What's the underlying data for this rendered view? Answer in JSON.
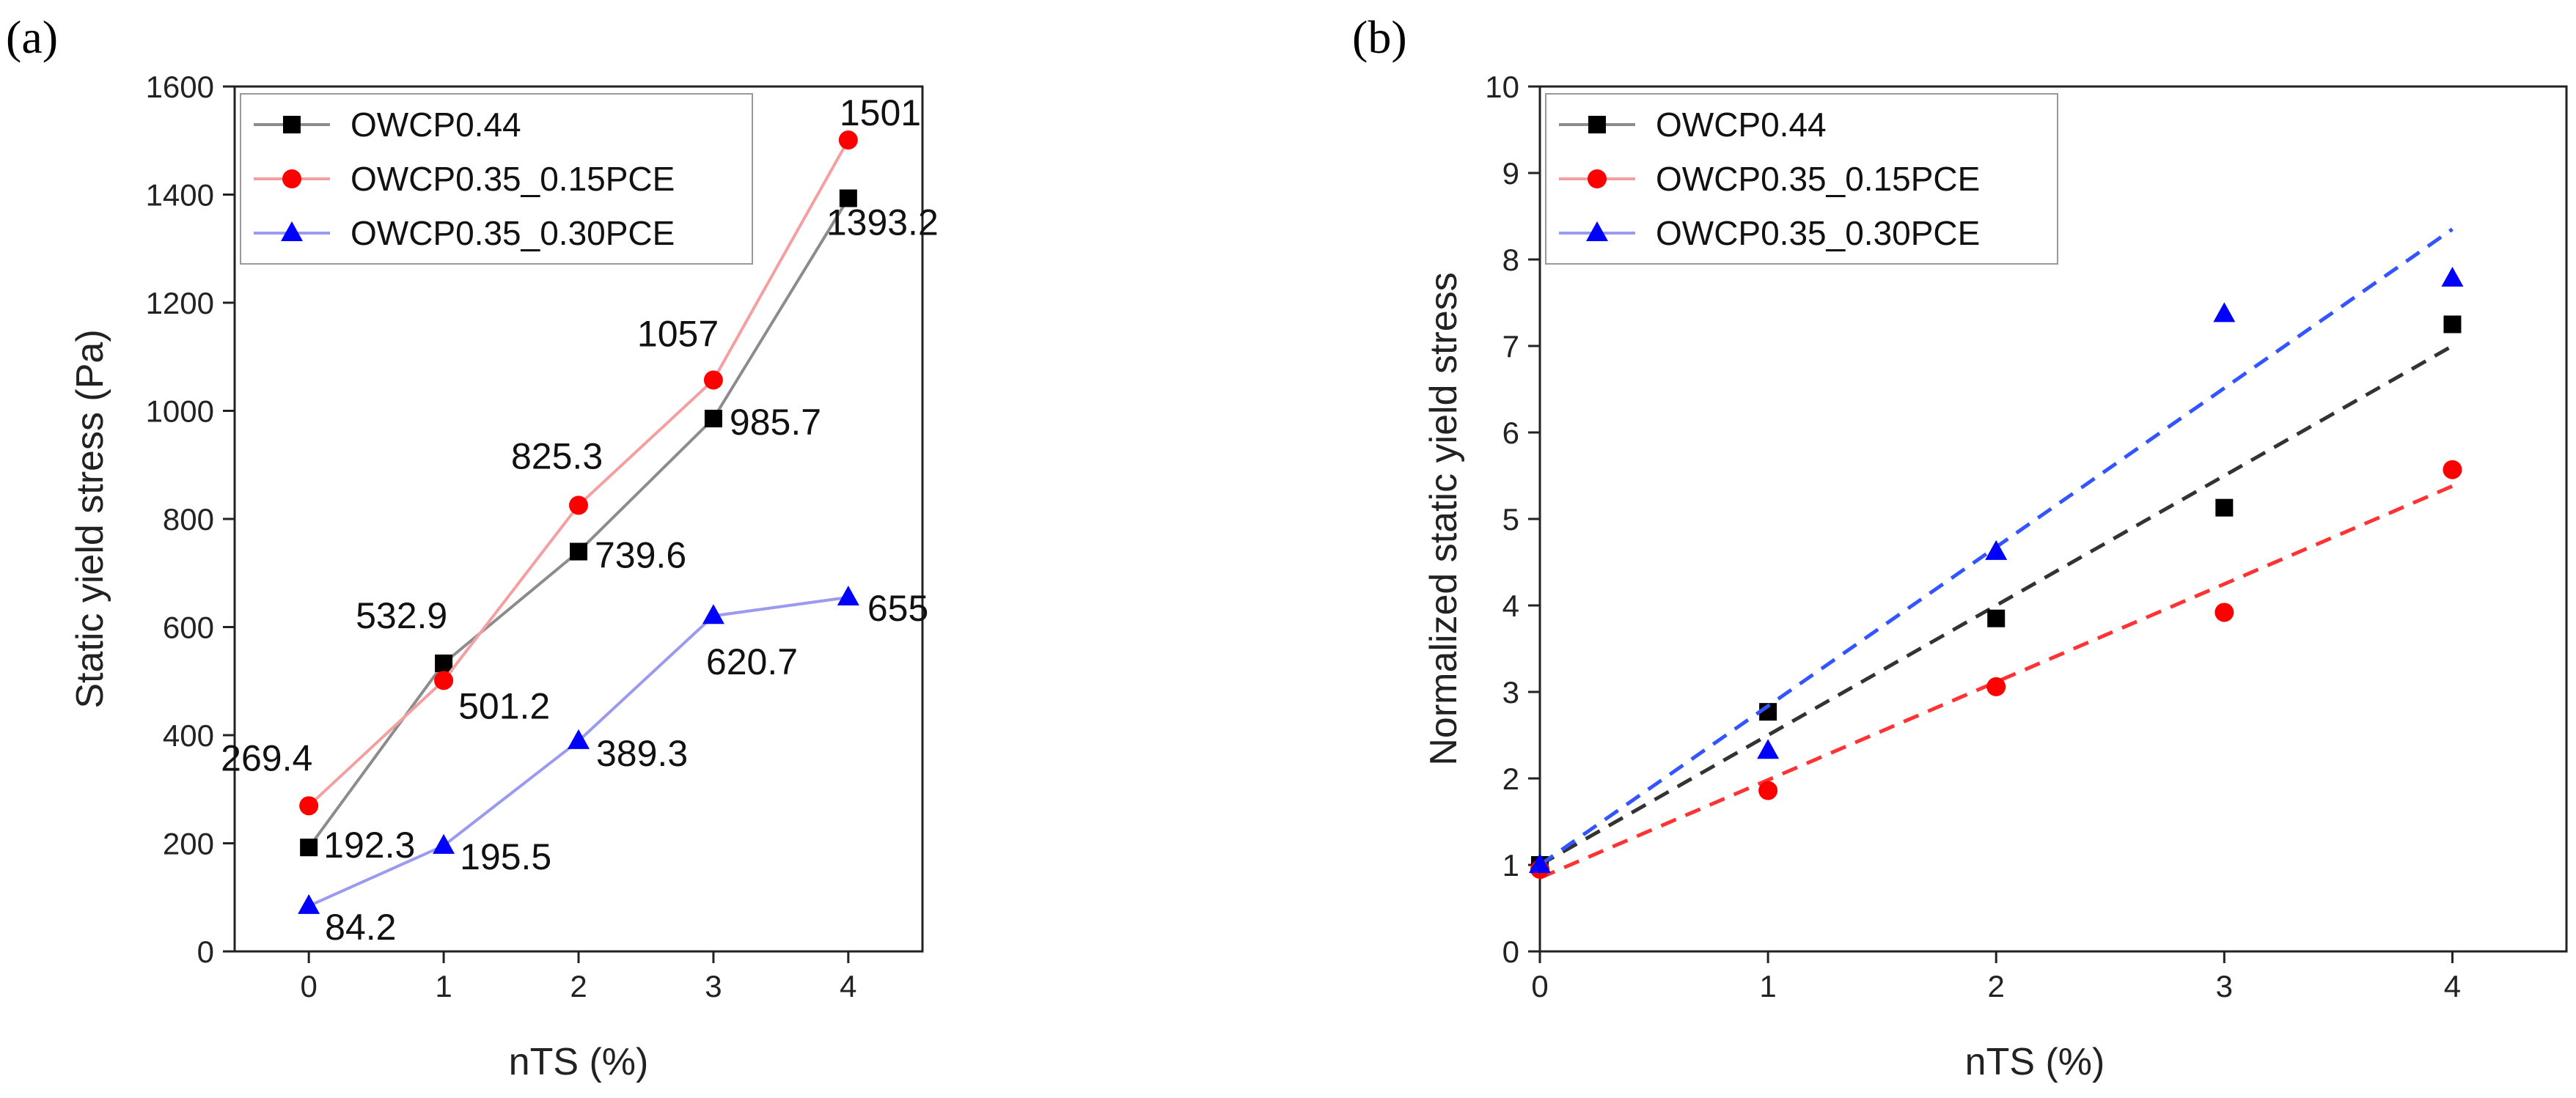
{
  "chart_data": [
    {
      "panel": "(a)",
      "type": "line",
      "xlabel": "nTS (%)",
      "ylabel": "Static yield stress (Pa)",
      "xlim": [
        -0.55,
        4.55
      ],
      "ylim": [
        0,
        1600
      ],
      "xticks": [
        0,
        1,
        2,
        3,
        4
      ],
      "yticks": [
        0,
        200,
        400,
        600,
        800,
        1000,
        1200,
        1400,
        1600
      ],
      "legend_position": "top-left",
      "grid": false,
      "series": [
        {
          "name": "OWCP0.44",
          "color": "#000000",
          "line_color": "#8c8c8c",
          "marker": "square",
          "x": [
            0,
            1,
            2,
            3,
            4
          ],
          "values": [
            192.3,
            532.9,
            739.6,
            985.7,
            1393.2
          ],
          "labels": [
            "192.3",
            "532.9",
            "739.6",
            "985.7",
            "1393.2"
          ]
        },
        {
          "name": "OWCP0.35_0.15PCE",
          "color": "#ff0000",
          "line_color": "#f4a0a0",
          "marker": "circle",
          "x": [
            0,
            1,
            2,
            3,
            4
          ],
          "values": [
            269.4,
            501.2,
            825.3,
            1057,
            1501
          ],
          "labels": [
            "269.4",
            "501.2",
            "825.3",
            "1057",
            "1501"
          ]
        },
        {
          "name": "OWCP0.35_0.30PCE",
          "color": "#0000ff",
          "line_color": "#9a9af0",
          "marker": "triangle",
          "x": [
            0,
            1,
            2,
            3,
            4
          ],
          "values": [
            84.2,
            195.5,
            389.3,
            620.7,
            655
          ],
          "labels": [
            "84.2",
            "195.5",
            "389.3",
            "620.7",
            "655"
          ]
        }
      ]
    },
    {
      "panel": "(b)",
      "type": "scatter",
      "xlabel": "nTS (%)",
      "ylabel": "Normalized static yield stress",
      "xlim": [
        0,
        4.5
      ],
      "ylim": [
        0,
        10
      ],
      "xticks": [
        0,
        1,
        2,
        3,
        4
      ],
      "yticks": [
        0,
        1,
        2,
        3,
        4,
        5,
        6,
        7,
        8,
        9,
        10
      ],
      "legend_position": "top-left",
      "grid": false,
      "series": [
        {
          "name": "OWCP0.44",
          "color": "#000000",
          "line_color": "#8c8c8c",
          "marker": "square",
          "x": [
            0,
            1,
            2,
            3,
            4
          ],
          "values": [
            1.0,
            2.77,
            3.85,
            5.13,
            7.25
          ],
          "fit": {
            "x": [
              0,
              4
            ],
            "values": [
              1.0,
              7.0
            ],
            "color": "#333333",
            "dash": true
          }
        },
        {
          "name": "OWCP0.35_0.15PCE",
          "color": "#ff0000",
          "line_color": "#f4a0a0",
          "marker": "circle",
          "x": [
            0,
            1,
            2,
            3,
            4
          ],
          "values": [
            0.95,
            1.86,
            3.06,
            3.92,
            5.57
          ],
          "fit": {
            "x": [
              0,
              4
            ],
            "values": [
              0.85,
              5.38
            ],
            "color": "#ff3333",
            "dash": true
          }
        },
        {
          "name": "OWCP0.35_0.30PCE",
          "color": "#0000ff",
          "line_color": "#9a9af0",
          "marker": "triangle",
          "x": [
            0,
            1,
            2,
            3,
            4
          ],
          "values": [
            1.0,
            2.32,
            4.62,
            7.37,
            7.78
          ],
          "fit": {
            "x": [
              0,
              4
            ],
            "values": [
              1.0,
              8.35
            ],
            "color": "#3355ff",
            "dash": true
          }
        }
      ]
    }
  ]
}
